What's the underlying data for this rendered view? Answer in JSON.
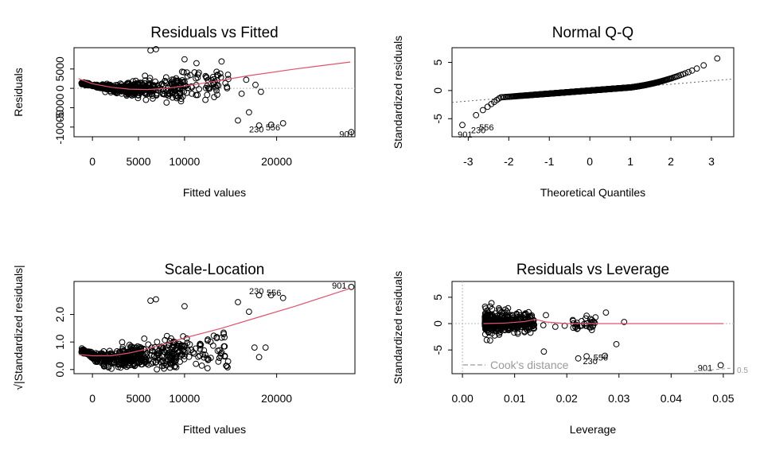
{
  "chart_data": [
    {
      "type": "scatter",
      "title": "Residuals vs Fitted",
      "xlabel": "Fitted values",
      "ylabel": "Residuals",
      "xlim": [
        -2000,
        28500
      ],
      "ylim": [
        -12500,
        10500
      ],
      "xticks": [
        0,
        5000,
        10000,
        20000
      ],
      "xtick_labels": [
        "0",
        "5000",
        "10000",
        "20000"
      ],
      "yticks": [
        -10000,
        -5000,
        0,
        5000
      ],
      "ytick_labels": [
        "-10000",
        "-5000",
        "0",
        "5000"
      ],
      "ref_hline": 0,
      "labels": [
        {
          "text": "230",
          "x": 17800,
          "y": -10500
        },
        {
          "text": "556",
          "x": 19600,
          "y": -10000
        },
        {
          "text": "901",
          "x": 27600,
          "y": -11800
        }
      ],
      "smooth": {
        "x": [
          -1500,
          0,
          2000,
          4000,
          6000,
          8000,
          10000,
          13000,
          17000,
          22000,
          28000
        ],
        "y": [
          2500,
          1200,
          300,
          -200,
          -300,
          0,
          600,
          1700,
          3300,
          5000,
          6800
        ]
      },
      "highlight_points": [
        {
          "x": 15800,
          "y": -8300
        },
        {
          "x": 17000,
          "y": -6200
        },
        {
          "x": 18100,
          "y": -9600
        },
        {
          "x": 19400,
          "y": -9400
        },
        {
          "x": 20700,
          "y": -9000
        },
        {
          "x": 28100,
          "y": -11300
        },
        {
          "x": 6300,
          "y": 9800
        },
        {
          "x": 6900,
          "y": 10100
        },
        {
          "x": 10000,
          "y": 7500
        },
        {
          "x": 11300,
          "y": 6500
        },
        {
          "x": 16700,
          "y": 2200
        },
        {
          "x": 17700,
          "y": 900
        },
        {
          "x": 18300,
          "y": -900
        },
        {
          "x": 16200,
          "y": -1400
        }
      ]
    },
    {
      "type": "scatter",
      "title": "Normal Q-Q",
      "xlabel": "Theoretical Quantiles",
      "ylabel": "Standardized residuals",
      "xlim": [
        -3.4,
        3.55
      ],
      "ylim": [
        -8.2,
        7.6
      ],
      "xticks": [
        -3,
        -2,
        -1,
        0,
        1,
        2,
        3
      ],
      "xtick_labels": [
        "-3",
        "-2",
        "-1",
        "0",
        "1",
        "2",
        "3"
      ],
      "yticks": [
        -5,
        0,
        5
      ],
      "ytick_labels": [
        "-5",
        "0",
        "5"
      ],
      "ref_line": {
        "x": [
          -3.4,
          3.55
        ],
        "y": [
          -2.1,
          2.05
        ]
      },
      "labels": [
        {
          "text": "901",
          "x": -3.08,
          "y": -7.8
        },
        {
          "text": "230",
          "x": -2.75,
          "y": -7.0
        },
        {
          "text": "556",
          "x": -2.55,
          "y": -6.5
        }
      ]
    },
    {
      "type": "scatter",
      "title": "Scale-Location",
      "xlabel": "Fitted values",
      "ylabel": "√|Standardized residuals|",
      "xlim": [
        -2000,
        28500
      ],
      "ylim": [
        -0.15,
        3.2
      ],
      "xticks": [
        0,
        5000,
        10000,
        20000
      ],
      "xtick_labels": [
        "0",
        "5000",
        "10000",
        "20000"
      ],
      "yticks": [
        0.0,
        1.0,
        2.0
      ],
      "ytick_labels": [
        "0.0",
        "1.0",
        "2.0"
      ],
      "labels": [
        {
          "text": "230",
          "x": 17800,
          "y": 2.85
        },
        {
          "text": "556",
          "x": 19700,
          "y": 2.8
        },
        {
          "text": "901",
          "x": 26800,
          "y": 3.05
        }
      ],
      "smooth": {
        "x": [
          -1500,
          0,
          2000,
          4000,
          6000,
          8000,
          10000,
          14000,
          18000,
          22000,
          28000
        ],
        "y": [
          0.55,
          0.5,
          0.5,
          0.6,
          0.75,
          0.95,
          1.15,
          1.5,
          1.9,
          2.3,
          2.95
        ]
      },
      "highlight_points": [
        {
          "x": 28100,
          "y": 3.0
        },
        {
          "x": 18100,
          "y": 2.7
        },
        {
          "x": 19400,
          "y": 2.7
        },
        {
          "x": 20700,
          "y": 2.6
        },
        {
          "x": 15800,
          "y": 2.45
        },
        {
          "x": 17000,
          "y": 2.1
        },
        {
          "x": 6300,
          "y": 2.5
        },
        {
          "x": 6900,
          "y": 2.55
        },
        {
          "x": 10000,
          "y": 2.3
        },
        {
          "x": 17600,
          "y": 0.8
        },
        {
          "x": 18800,
          "y": 0.8
        },
        {
          "x": 18100,
          "y": 0.45
        },
        {
          "x": 12500,
          "y": 0.05
        }
      ]
    },
    {
      "type": "scatter",
      "title": "Residuals vs Leverage",
      "xlabel": "Leverage",
      "ylabel": "Standardized residuals",
      "xlim": [
        -0.002,
        0.052
      ],
      "ylim": [
        -9.5,
        8.0
      ],
      "xticks": [
        0.0,
        0.01,
        0.02,
        0.03,
        0.04,
        0.05
      ],
      "xtick_labels": [
        "0.00",
        "0.01",
        "0.02",
        "0.03",
        "0.04",
        "0.05"
      ],
      "yticks": [
        -5,
        0,
        5
      ],
      "ytick_labels": [
        "-5",
        "0",
        "5"
      ],
      "ref_hline": 0,
      "ref_vline": 0,
      "legend": {
        "text": "Cook's distance",
        "position": "bottom-left"
      },
      "cook_label": "0.5",
      "labels": [
        {
          "text": "230",
          "x": 0.0245,
          "y": -7.1
        },
        {
          "text": "556",
          "x": 0.0265,
          "y": -6.4
        },
        {
          "text": "901",
          "x": 0.0465,
          "y": -8.4
        }
      ],
      "smooth": {
        "x": [
          0.004,
          0.008,
          0.012,
          0.014,
          0.016,
          0.02,
          0.025,
          0.03,
          0.04,
          0.05
        ],
        "y": [
          0.0,
          0.1,
          0.4,
          0.8,
          0.3,
          0.0,
          0.0,
          0.0,
          0.0,
          0.0
        ]
      },
      "highlight_points": [
        {
          "x": 0.0495,
          "y": -7.9
        },
        {
          "x": 0.0222,
          "y": -6.6
        },
        {
          "x": 0.0238,
          "y": -6.2
        },
        {
          "x": 0.0273,
          "y": -6.1
        },
        {
          "x": 0.0156,
          "y": -5.3
        },
        {
          "x": 0.0295,
          "y": -3.9
        },
        {
          "x": 0.031,
          "y": 0.3
        },
        {
          "x": 0.0275,
          "y": 2.1
        },
        {
          "x": 0.0255,
          "y": 1.2
        },
        {
          "x": 0.0248,
          "y": 0.7
        },
        {
          "x": 0.0238,
          "y": 1.5
        },
        {
          "x": 0.0245,
          "y": 0.9
        },
        {
          "x": 0.0225,
          "y": -0.5
        },
        {
          "x": 0.022,
          "y": -1.0
        },
        {
          "x": 0.0218,
          "y": -0.2
        },
        {
          "x": 0.0212,
          "y": 0.5
        },
        {
          "x": 0.0178,
          "y": -0.6
        },
        {
          "x": 0.0196,
          "y": -0.4
        },
        {
          "x": 0.016,
          "y": 1.6
        },
        {
          "x": 0.0155,
          "y": -0.3
        }
      ]
    }
  ]
}
